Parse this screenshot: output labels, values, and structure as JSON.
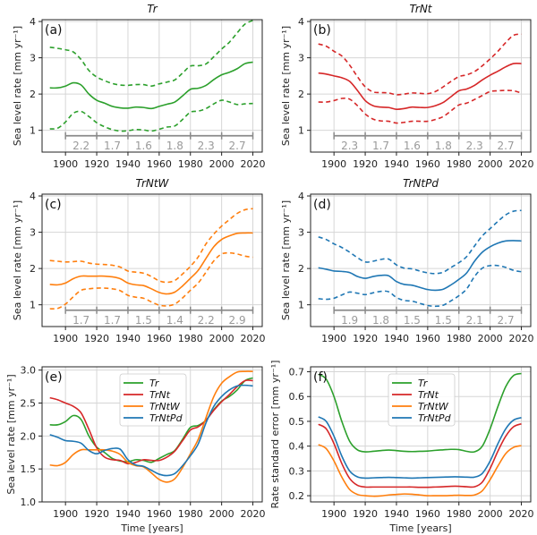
{
  "chart_data": [
    {
      "panel": "a",
      "type": "line",
      "title": "Tr",
      "label": "(a)",
      "ylabel": "Sea level rate [mm yr⁻¹]",
      "xlabel": "",
      "xlim": [
        1885,
        2026
      ],
      "ylim": [
        0.4,
        4.05
      ],
      "xticks": [
        1900,
        1920,
        1940,
        1960,
        1980,
        2000,
        2020
      ],
      "yticks": [
        1,
        2,
        3,
        4
      ],
      "ytick_labels": [
        "1",
        "2",
        "3",
        "4"
      ],
      "grid": true,
      "color": "#2ca02c",
      "x": [
        1890,
        1895,
        1900,
        1905,
        1910,
        1915,
        1920,
        1925,
        1930,
        1935,
        1940,
        1945,
        1950,
        1955,
        1960,
        1965,
        1970,
        1975,
        1980,
        1985,
        1990,
        1995,
        2000,
        2005,
        2010,
        2015,
        2020
      ],
      "series": [
        {
          "name": "Tr",
          "style": "solid",
          "values": [
            2.17,
            2.17,
            2.22,
            2.31,
            2.25,
            2.0,
            1.83,
            1.75,
            1.66,
            1.62,
            1.61,
            1.64,
            1.63,
            1.6,
            1.66,
            1.72,
            1.78,
            1.95,
            2.13,
            2.16,
            2.24,
            2.4,
            2.53,
            2.6,
            2.7,
            2.84,
            2.88
          ]
        },
        {
          "name": "Tr upper",
          "style": "dashed",
          "values": [
            3.29,
            3.26,
            3.22,
            3.16,
            2.95,
            2.65,
            2.47,
            2.37,
            2.29,
            2.25,
            2.24,
            2.26,
            2.26,
            2.22,
            2.28,
            2.33,
            2.39,
            2.58,
            2.77,
            2.78,
            2.83,
            3.03,
            3.24,
            3.43,
            3.69,
            3.93,
            4.03
          ]
        },
        {
          "name": "Tr lower",
          "style": "dashed",
          "values": [
            1.04,
            1.06,
            1.23,
            1.47,
            1.52,
            1.38,
            1.21,
            1.1,
            1.02,
            0.98,
            0.99,
            1.02,
            1.01,
            0.98,
            1.03,
            1.09,
            1.12,
            1.3,
            1.5,
            1.53,
            1.6,
            1.73,
            1.83,
            1.78,
            1.71,
            1.73,
            1.74
          ]
        }
      ],
      "segments": {
        "bounds": [
          1900,
          1920,
          1940,
          1960,
          1980,
          2000,
          2020
        ],
        "labels": [
          "2.2",
          "1.7",
          "1.6",
          "1.8",
          "2.3",
          "2.7"
        ]
      }
    },
    {
      "panel": "b",
      "type": "line",
      "title": "TrNt",
      "label": "(b)",
      "ylabel": "Sea level rate [mm yr⁻¹]",
      "xlabel": "",
      "xlim": [
        1885,
        2026
      ],
      "ylim": [
        0.4,
        4.05
      ],
      "xticks": [
        1900,
        1920,
        1940,
        1960,
        1980,
        2000,
        2020
      ],
      "yticks": [
        1,
        2,
        3,
        4
      ],
      "ytick_labels": [
        "1",
        "2",
        "3",
        "4"
      ],
      "grid": true,
      "color": "#d62728",
      "x": [
        1890,
        1895,
        1900,
        1905,
        1910,
        1915,
        1920,
        1925,
        1930,
        1935,
        1940,
        1945,
        1950,
        1955,
        1960,
        1965,
        1970,
        1975,
        1980,
        1985,
        1990,
        1995,
        2000,
        2005,
        2010,
        2015,
        2020
      ],
      "series": [
        {
          "name": "TrNt",
          "style": "solid",
          "values": [
            2.58,
            2.55,
            2.5,
            2.45,
            2.35,
            2.1,
            1.82,
            1.68,
            1.64,
            1.63,
            1.58,
            1.6,
            1.64,
            1.63,
            1.63,
            1.68,
            1.77,
            1.93,
            2.09,
            2.14,
            2.24,
            2.39,
            2.52,
            2.63,
            2.75,
            2.84,
            2.84
          ]
        },
        {
          "name": "TrNt upper",
          "style": "dashed",
          "values": [
            3.38,
            3.32,
            3.18,
            3.05,
            2.8,
            2.48,
            2.2,
            2.06,
            2.04,
            2.03,
            1.98,
            2.0,
            2.03,
            2.02,
            2.01,
            2.07,
            2.2,
            2.35,
            2.48,
            2.53,
            2.62,
            2.78,
            2.97,
            3.18,
            3.42,
            3.62,
            3.65
          ]
        },
        {
          "name": "TrNt lower",
          "style": "dashed",
          "values": [
            1.78,
            1.78,
            1.82,
            1.88,
            1.86,
            1.68,
            1.45,
            1.31,
            1.26,
            1.25,
            1.2,
            1.22,
            1.25,
            1.25,
            1.25,
            1.3,
            1.38,
            1.54,
            1.7,
            1.75,
            1.85,
            1.96,
            2.07,
            2.09,
            2.1,
            2.09,
            2.03
          ]
        }
      ],
      "segments": {
        "bounds": [
          1900,
          1920,
          1940,
          1960,
          1980,
          2000,
          2020
        ],
        "labels": [
          "2.3",
          "1.7",
          "1.6",
          "1.8",
          "2.3",
          "2.7"
        ]
      }
    },
    {
      "panel": "c",
      "type": "line",
      "title": "TrNtW",
      "label": "(c)",
      "ylabel": "Sea level rate [mm yr⁻¹]",
      "xlabel": "",
      "xlim": [
        1885,
        2026
      ],
      "ylim": [
        0.4,
        4.05
      ],
      "xticks": [
        1900,
        1920,
        1940,
        1960,
        1980,
        2000,
        2020
      ],
      "yticks": [
        1,
        2,
        3,
        4
      ],
      "ytick_labels": [
        "1",
        "2",
        "3",
        "4"
      ],
      "grid": true,
      "color": "#ff7f0e",
      "x": [
        1890,
        1895,
        1900,
        1905,
        1910,
        1915,
        1920,
        1925,
        1930,
        1935,
        1940,
        1945,
        1950,
        1955,
        1960,
        1965,
        1970,
        1975,
        1980,
        1985,
        1990,
        1995,
        2000,
        2005,
        2010,
        2015,
        2020
      ],
      "series": [
        {
          "name": "TrNtW",
          "style": "solid",
          "values": [
            1.56,
            1.55,
            1.6,
            1.72,
            1.79,
            1.79,
            1.79,
            1.79,
            1.77,
            1.72,
            1.6,
            1.55,
            1.53,
            1.44,
            1.34,
            1.3,
            1.35,
            1.52,
            1.73,
            1.95,
            2.28,
            2.6,
            2.8,
            2.9,
            2.97,
            2.98,
            2.98
          ]
        },
        {
          "name": "TrNtW upper",
          "style": "dashed",
          "values": [
            2.22,
            2.2,
            2.18,
            2.19,
            2.2,
            2.15,
            2.12,
            2.11,
            2.09,
            2.04,
            1.93,
            1.9,
            1.87,
            1.78,
            1.66,
            1.62,
            1.67,
            1.85,
            2.06,
            2.32,
            2.68,
            2.95,
            3.17,
            3.35,
            3.52,
            3.62,
            3.65
          ]
        },
        {
          "name": "TrNtW lower",
          "style": "dashed",
          "values": [
            0.89,
            0.9,
            1.02,
            1.22,
            1.4,
            1.44,
            1.46,
            1.46,
            1.44,
            1.39,
            1.26,
            1.21,
            1.18,
            1.08,
            0.99,
            0.97,
            1.02,
            1.19,
            1.4,
            1.6,
            1.9,
            2.21,
            2.4,
            2.43,
            2.4,
            2.34,
            2.31
          ]
        }
      ],
      "segments": {
        "bounds": [
          1900,
          1920,
          1940,
          1960,
          1980,
          2000,
          2020
        ],
        "labels": [
          "1.7",
          "1.7",
          "1.5",
          "1.4",
          "2.2",
          "2.9"
        ]
      }
    },
    {
      "panel": "d",
      "type": "line",
      "title": "TrNtPd",
      "label": "(d)",
      "ylabel": "Sea level rate [mm yr⁻¹]",
      "xlabel": "",
      "xlim": [
        1885,
        2026
      ],
      "ylim": [
        0.4,
        4.05
      ],
      "xticks": [
        1900,
        1920,
        1940,
        1960,
        1980,
        2000,
        2020
      ],
      "yticks": [
        1,
        2,
        3,
        4
      ],
      "ytick_labels": [
        "1",
        "2",
        "3",
        "4"
      ],
      "grid": true,
      "color": "#1f77b4",
      "x": [
        1890,
        1895,
        1900,
        1905,
        1910,
        1915,
        1920,
        1925,
        1930,
        1935,
        1940,
        1945,
        1950,
        1955,
        1960,
        1965,
        1970,
        1975,
        1980,
        1985,
        1990,
        1995,
        2000,
        2005,
        2010,
        2015,
        2020
      ],
      "series": [
        {
          "name": "TrNtPd",
          "style": "solid",
          "values": [
            2.02,
            1.98,
            1.93,
            1.92,
            1.89,
            1.78,
            1.73,
            1.78,
            1.81,
            1.8,
            1.64,
            1.56,
            1.54,
            1.48,
            1.42,
            1.4,
            1.43,
            1.55,
            1.7,
            1.88,
            2.2,
            2.45,
            2.6,
            2.7,
            2.76,
            2.77,
            2.76
          ]
        },
        {
          "name": "TrNtPd upper",
          "style": "dashed",
          "values": [
            2.87,
            2.8,
            2.68,
            2.58,
            2.45,
            2.3,
            2.18,
            2.2,
            2.25,
            2.26,
            2.1,
            2.01,
            1.99,
            1.93,
            1.88,
            1.86,
            1.9,
            2.03,
            2.16,
            2.33,
            2.62,
            2.9,
            3.1,
            3.3,
            3.48,
            3.58,
            3.6
          ]
        },
        {
          "name": "TrNtPd lower",
          "style": "dashed",
          "values": [
            1.17,
            1.15,
            1.18,
            1.27,
            1.35,
            1.32,
            1.28,
            1.33,
            1.37,
            1.36,
            1.2,
            1.12,
            1.1,
            1.04,
            0.98,
            0.96,
            0.99,
            1.11,
            1.25,
            1.44,
            1.78,
            2.01,
            2.08,
            2.08,
            2.03,
            1.95,
            1.91
          ]
        }
      ],
      "segments": {
        "bounds": [
          1900,
          1920,
          1940,
          1960,
          1980,
          2000,
          2020
        ],
        "labels": [
          "1.9",
          "1.8",
          "1.5",
          "1.5",
          "2.1",
          "2.7"
        ]
      }
    },
    {
      "panel": "e",
      "type": "line",
      "title": "",
      "label": "(e)",
      "ylabel": "Sea level rate [mm yr⁻¹]",
      "xlabel": "Time [years]",
      "xlim": [
        1885,
        2026
      ],
      "ylim": [
        1.0,
        3.05
      ],
      "xticks": [
        1900,
        1920,
        1940,
        1960,
        1980,
        2000,
        2020
      ],
      "yticks": [
        1.0,
        1.5,
        2.0,
        2.5,
        3.0
      ],
      "ytick_labels": [
        "1.0",
        "1.5",
        "2.0",
        "2.5",
        "3.0"
      ],
      "grid": true,
      "legend": "top-center",
      "x": [
        1890,
        1895,
        1900,
        1905,
        1910,
        1915,
        1920,
        1925,
        1930,
        1935,
        1940,
        1945,
        1950,
        1955,
        1960,
        1965,
        1970,
        1975,
        1980,
        1985,
        1990,
        1995,
        2000,
        2005,
        2010,
        2015,
        2020
      ],
      "series": [
        {
          "name": "Tr",
          "color": "#2ca02c",
          "style": "solid",
          "values": [
            2.17,
            2.17,
            2.22,
            2.31,
            2.25,
            2.0,
            1.83,
            1.75,
            1.66,
            1.62,
            1.61,
            1.64,
            1.63,
            1.6,
            1.66,
            1.72,
            1.78,
            1.95,
            2.13,
            2.16,
            2.24,
            2.4,
            2.53,
            2.6,
            2.7,
            2.84,
            2.88
          ]
        },
        {
          "name": "TrNt",
          "color": "#d62728",
          "style": "solid",
          "values": [
            2.58,
            2.55,
            2.5,
            2.45,
            2.35,
            2.1,
            1.82,
            1.68,
            1.64,
            1.63,
            1.58,
            1.6,
            1.64,
            1.63,
            1.63,
            1.68,
            1.77,
            1.93,
            2.09,
            2.14,
            2.24,
            2.39,
            2.52,
            2.63,
            2.75,
            2.84,
            2.84
          ]
        },
        {
          "name": "TrNtW",
          "color": "#ff7f0e",
          "style": "solid",
          "values": [
            1.56,
            1.55,
            1.6,
            1.72,
            1.79,
            1.79,
            1.79,
            1.79,
            1.77,
            1.72,
            1.6,
            1.55,
            1.53,
            1.44,
            1.34,
            1.3,
            1.35,
            1.52,
            1.73,
            1.95,
            2.28,
            2.6,
            2.8,
            2.9,
            2.97,
            2.98,
            2.98
          ]
        },
        {
          "name": "TrNtPd",
          "color": "#1f77b4",
          "style": "solid",
          "values": [
            2.02,
            1.98,
            1.93,
            1.92,
            1.89,
            1.78,
            1.73,
            1.78,
            1.81,
            1.8,
            1.64,
            1.56,
            1.54,
            1.48,
            1.42,
            1.4,
            1.43,
            1.55,
            1.7,
            1.88,
            2.2,
            2.45,
            2.6,
            2.7,
            2.76,
            2.77,
            2.76
          ]
        }
      ]
    },
    {
      "panel": "f",
      "type": "line",
      "title": "",
      "label": "(f)",
      "ylabel": "Rate standard error [mm yr⁻¹]",
      "xlabel": "Time [years]",
      "xlim": [
        1885,
        2026
      ],
      "ylim": [
        0.175,
        0.72
      ],
      "xticks": [
        1900,
        1920,
        1940,
        1960,
        1980,
        2000,
        2020
      ],
      "yticks": [
        0.2,
        0.3,
        0.4,
        0.5,
        0.6,
        0.7
      ],
      "ytick_labels": [
        "0.2",
        "0.3",
        "0.4",
        "0.5",
        "0.6",
        "0.7"
      ],
      "grid": true,
      "legend": "top-center",
      "x": [
        1890,
        1895,
        1900,
        1905,
        1910,
        1915,
        1920,
        1925,
        1930,
        1935,
        1940,
        1945,
        1950,
        1955,
        1960,
        1965,
        1970,
        1975,
        1980,
        1985,
        1990,
        1995,
        2000,
        2005,
        2010,
        2015,
        2020
      ],
      "series": [
        {
          "name": "Tr",
          "color": "#2ca02c",
          "style": "solid",
          "values": [
            0.69,
            0.67,
            0.6,
            0.5,
            0.42,
            0.385,
            0.377,
            0.379,
            0.382,
            0.384,
            0.382,
            0.379,
            0.378,
            0.379,
            0.38,
            0.383,
            0.385,
            0.387,
            0.386,
            0.379,
            0.377,
            0.4,
            0.47,
            0.56,
            0.64,
            0.685,
            0.693
          ]
        },
        {
          "name": "TrNt",
          "color": "#d62728",
          "style": "solid",
          "values": [
            0.488,
            0.47,
            0.41,
            0.33,
            0.27,
            0.242,
            0.235,
            0.235,
            0.235,
            0.235,
            0.235,
            0.235,
            0.235,
            0.234,
            0.234,
            0.235,
            0.236,
            0.238,
            0.238,
            0.236,
            0.236,
            0.255,
            0.31,
            0.38,
            0.44,
            0.478,
            0.49
          ]
        },
        {
          "name": "TrNtW",
          "color": "#ff7f0e",
          "style": "solid",
          "values": [
            0.406,
            0.39,
            0.34,
            0.275,
            0.225,
            0.205,
            0.2,
            0.198,
            0.199,
            0.203,
            0.205,
            0.207,
            0.206,
            0.203,
            0.2,
            0.2,
            0.2,
            0.201,
            0.202,
            0.201,
            0.203,
            0.22,
            0.265,
            0.32,
            0.37,
            0.395,
            0.402
          ]
        },
        {
          "name": "TrNtPd",
          "color": "#1f77b4",
          "style": "solid",
          "values": [
            0.518,
            0.5,
            0.44,
            0.36,
            0.3,
            0.276,
            0.271,
            0.272,
            0.273,
            0.274,
            0.273,
            0.272,
            0.271,
            0.272,
            0.273,
            0.274,
            0.275,
            0.276,
            0.276,
            0.275,
            0.275,
            0.29,
            0.34,
            0.41,
            0.47,
            0.505,
            0.515
          ]
        }
      ]
    }
  ]
}
